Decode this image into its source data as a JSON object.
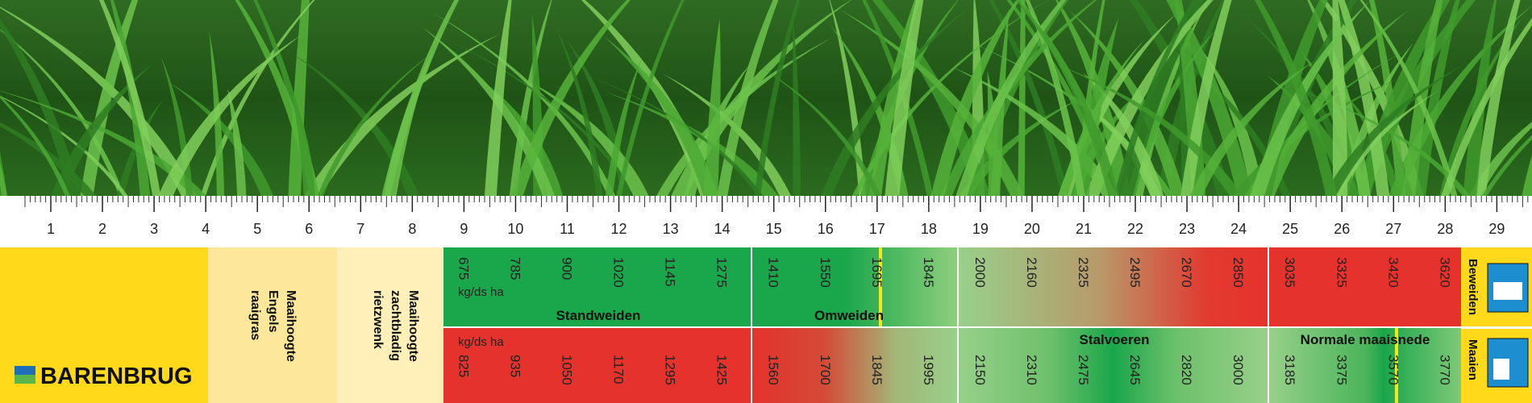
{
  "ruler": {
    "labels": [
      1,
      2,
      3,
      4,
      5,
      6,
      7,
      8,
      9,
      10,
      11,
      12,
      13,
      14,
      15,
      16,
      17,
      18,
      19,
      20,
      21,
      22,
      23,
      24,
      25,
      26,
      27,
      28,
      29
    ]
  },
  "logo": "BARENBRUG",
  "columns": [
    [
      "Maaihoogte",
      "Engels",
      "raaigras"
    ],
    [
      "Maaihoogte",
      "zachtbladig",
      "rietzwenk"
    ]
  ],
  "rows": [
    {
      "label": "Beweiden",
      "unit": "kg/ds ha",
      "values": [
        675,
        785,
        900,
        1020,
        1145,
        1275,
        1410,
        1550,
        1695,
        1845,
        2000,
        2160,
        2325,
        2495,
        2670,
        2850,
        3035,
        3325,
        3420,
        3620
      ],
      "segments": [
        "Standweiden",
        "Omweiden"
      ]
    },
    {
      "label": "Maaien",
      "unit": "kg/ds ha",
      "values": [
        825,
        935,
        1050,
        1170,
        1295,
        1425,
        1560,
        1700,
        1845,
        1995,
        2150,
        2310,
        2475,
        2645,
        2820,
        3000,
        3185,
        3375,
        3570,
        3770
      ],
      "segments": [
        "Stalvoeren",
        "Normale maaisnede"
      ]
    }
  ]
}
